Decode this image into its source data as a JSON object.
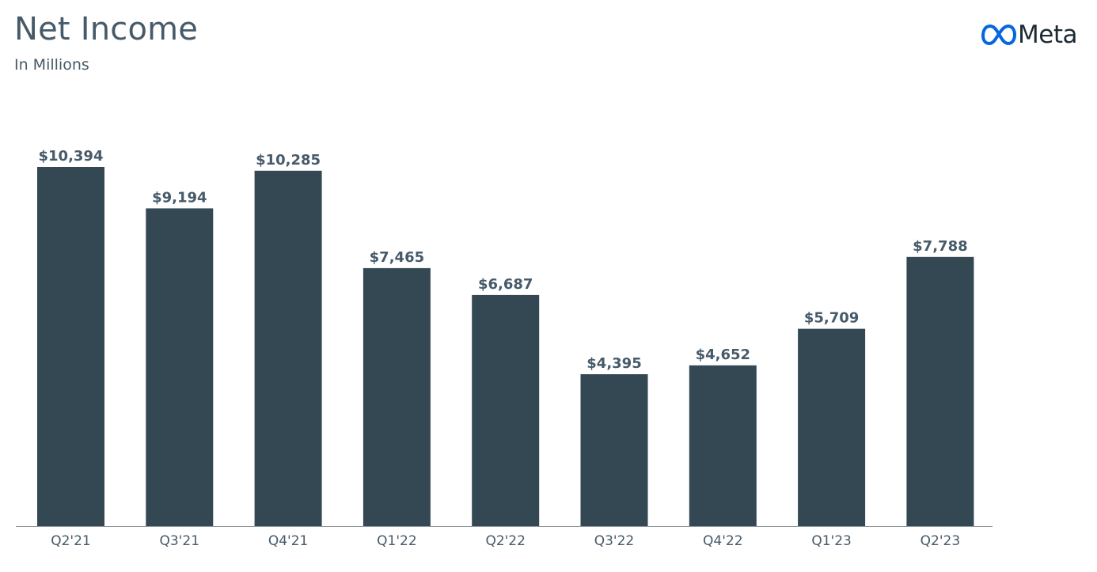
{
  "header": {
    "title": "Net Income",
    "subtitle": "In Millions",
    "logo_text": "Meta"
  },
  "colors": {
    "bar": "#344854",
    "text": "#465a69",
    "axis": "#8e979e",
    "logo_blue": "#0467df"
  },
  "chart_data": {
    "type": "bar",
    "title": "Net Income",
    "subtitle": "In Millions",
    "categories": [
      "Q2'21",
      "Q3'21",
      "Q4'21",
      "Q1'22",
      "Q2'22",
      "Q3'22",
      "Q4'22",
      "Q1'23",
      "Q2'23"
    ],
    "values": [
      10394,
      9194,
      10285,
      7465,
      6687,
      4395,
      4652,
      5709,
      7788
    ],
    "value_labels": [
      "$10,394",
      "$9,194",
      "$10,285",
      "$7,465",
      "$6,687",
      "$4,395",
      "$4,652",
      "$5,709",
      "$7,788"
    ],
    "xlabel": "",
    "ylabel": "",
    "ylim": [
      0,
      10394
    ],
    "grid": false,
    "legend": "none"
  }
}
